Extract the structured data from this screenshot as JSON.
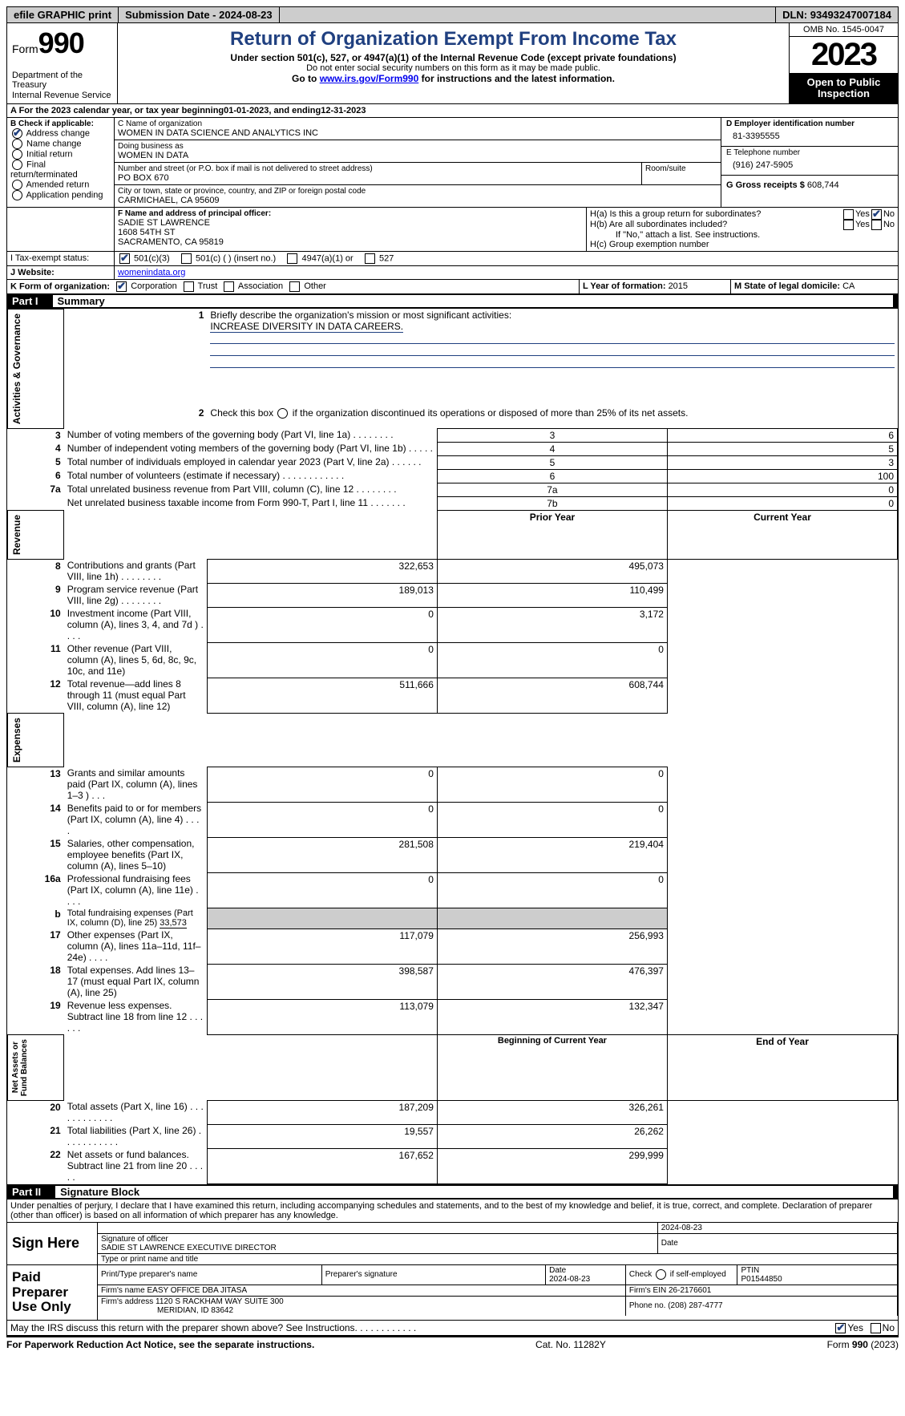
{
  "topbar": {
    "efile": "efile GRAPHIC print",
    "sub_label": "Submission Date - ",
    "sub_date": "2024-08-23",
    "dln_label": "DLN: ",
    "dln": "93493247007184"
  },
  "header": {
    "form_prefix": "Form",
    "form_no": "990",
    "dept": "Department of the Treasury\nInternal Revenue Service",
    "title": "Return of Organization Exempt From Income Tax",
    "sub1": "Under section 501(c), 527, or 4947(a)(1) of the Internal Revenue Code (except private foundations)",
    "sub2": "Do not enter social security numbers on this form as it may be made public.",
    "sub3_pre": "Go to ",
    "sub3_link": "www.irs.gov/Form990",
    "sub3_post": " for instructions and the latest information.",
    "omb": "OMB No. 1545-0047",
    "year": "2023",
    "inspect": "Open to Public Inspection",
    "title_color": "#204080"
  },
  "lineA": {
    "prefix": "A For the 2023 calendar year, or tax year beginning ",
    "begin": "01-01-2023",
    "mid": " , and ending ",
    "end": "12-31-2023"
  },
  "colB": {
    "label": "B Check if applicable:",
    "items": [
      "Address change",
      "Name change",
      "Initial return",
      "Final return/terminated",
      "Amended return",
      "Application pending"
    ],
    "checked_idx": 0
  },
  "colC": {
    "name_label": "C Name of organization",
    "name": "WOMEN IN DATA SCIENCE AND ANALYTICS INC",
    "dba_label": "Doing business as",
    "dba": "WOMEN IN DATA",
    "addr_label": "Number and street (or P.O. box if mail is not delivered to street address)",
    "room_label": "Room/suite",
    "addr": "PO BOX 670",
    "city_label": "City or town, state or province, country, and ZIP or foreign postal code",
    "city": "CARMICHAEL, CA  95609"
  },
  "colD": {
    "label": "D Employer identification number",
    "val": "81-3395555"
  },
  "colE": {
    "label": "E Telephone number",
    "val": "(916) 247-5905"
  },
  "colG": {
    "label": "G Gross receipts $ ",
    "val": "608,744"
  },
  "colF": {
    "label": "F  Name and address of principal officer:",
    "lines": [
      "SADIE ST LAWRENCE",
      "1608 54TH ST",
      "SACRAMENTO, CA  95819"
    ]
  },
  "colH": {
    "a": "H(a)  Is this a group return for subordinates?",
    "b": "H(b)  Are all subordinates included?",
    "b_note": "If \"No,\" attach a list. See instructions.",
    "c": "H(c)  Group exemption number",
    "yes": "Yes",
    "no": "No"
  },
  "rowI": {
    "label": "I   Tax-exempt status:",
    "opts": [
      "501(c)(3)",
      "501(c) (  ) (insert no.)",
      "4947(a)(1) or",
      "527"
    ],
    "checked_idx": 0
  },
  "rowJ": {
    "label": "J   Website:",
    "val": "womenindata.org"
  },
  "rowK": {
    "label": "K Form of organization:",
    "opts": [
      "Corporation",
      "Trust",
      "Association",
      "Other"
    ],
    "checked_idx": 0
  },
  "rowL": {
    "label": "L Year of formation: ",
    "val": "2015"
  },
  "rowM": {
    "label": "M State of legal domicile: ",
    "val": "CA"
  },
  "part1": {
    "num": "Part I",
    "title": "Summary"
  },
  "side_labels": {
    "gov": "Activities & Governance",
    "rev": "Revenue",
    "exp": "Expenses",
    "net": "Net Assets or\nFund Balances"
  },
  "s1": {
    "l1": "Briefly describe the organization's mission or most significant activities:",
    "l1v": "INCREASE DIVERSITY IN DATA CAREERS.",
    "l2": "Check this box       if the organization discontinued its operations or disposed of more than 25% of its net assets.",
    "rows_gov": [
      {
        "n": "3",
        "d": "Number of voting members of the governing body (Part VI, line 1a)   .    .    .    .    .    .    .    .",
        "b": "3",
        "v": "6"
      },
      {
        "n": "4",
        "d": "Number of independent voting members of the governing body (Part VI, line 1b)   .    .    .    .    .",
        "b": "4",
        "v": "5"
      },
      {
        "n": "5",
        "d": "Total number of individuals employed in calendar year 2023 (Part V, line 2a)   .    .    .    .    .    .",
        "b": "5",
        "v": "3"
      },
      {
        "n": "6",
        "d": "Total number of volunteers (estimate if necessary)   .    .    .    .    .    .    .    .    .    .    .    .",
        "b": "6",
        "v": "100"
      },
      {
        "n": "7a",
        "d": "Total unrelated business revenue from Part VIII, column (C), line 12   .    .    .    .    .    .    .    .",
        "b": "7a",
        "v": "0"
      },
      {
        "n": "",
        "d": "Net unrelated business taxable income from Form 990-T, Part I, line 11   .    .    .    .    .    .    .",
        "b": "7b",
        "v": "0"
      }
    ],
    "hdr_prior": "Prior Year",
    "hdr_curr": "Current Year",
    "rows_rev": [
      {
        "n": "8",
        "d": "Contributions and grants (Part VIII, line 1h)   .    .    .    .    .    .    .    .",
        "p": "322,653",
        "c": "495,073"
      },
      {
        "n": "9",
        "d": "Program service revenue (Part VIII, line 2g)   .    .    .    .    .    .    .    .",
        "p": "189,013",
        "c": "110,499"
      },
      {
        "n": "10",
        "d": "Investment income (Part VIII, column (A), lines 3, 4, and 7d )   .    .    .    .",
        "p": "0",
        "c": "3,172"
      },
      {
        "n": "11",
        "d": "Other revenue (Part VIII, column (A), lines 5, 6d, 8c, 9c, 10c, and 11e)",
        "p": "0",
        "c": "0"
      },
      {
        "n": "12",
        "d": "Total revenue—add lines 8 through 11 (must equal Part VIII, column (A), line 12)",
        "p": "511,666",
        "c": "608,744"
      }
    ],
    "rows_exp": [
      {
        "n": "13",
        "d": "Grants and similar amounts paid (Part IX, column (A), lines 1–3 )   .    .    .",
        "p": "0",
        "c": "0"
      },
      {
        "n": "14",
        "d": "Benefits paid to or for members (Part IX, column (A), line 4)   .    .    .    .",
        "p": "0",
        "c": "0"
      },
      {
        "n": "15",
        "d": "Salaries, other compensation, employee benefits (Part IX, column (A), lines 5–10)",
        "p": "281,508",
        "c": "219,404"
      },
      {
        "n": "16a",
        "d": "Professional fundraising fees (Part IX, column (A), line 11e)   .    .    .    .",
        "p": "0",
        "c": "0"
      }
    ],
    "l16b_pre": "Total fundraising expenses (Part IX, column (D), line 25) ",
    "l16b_val": "33,573",
    "rows_exp2": [
      {
        "n": "17",
        "d": "Other expenses (Part IX, column (A), lines 11a–11d, 11f–24e)   .    .    .    .",
        "p": "117,079",
        "c": "256,993"
      },
      {
        "n": "18",
        "d": "Total expenses. Add lines 13–17 (must equal Part IX, column (A), line 25)",
        "p": "398,587",
        "c": "476,397"
      },
      {
        "n": "19",
        "d": "Revenue less expenses. Subtract line 18 from line 12   .    .    .    .    .    .",
        "p": "113,079",
        "c": "132,347"
      }
    ],
    "hdr_beg": "Beginning of Current Year",
    "hdr_end": "End of Year",
    "rows_net": [
      {
        "n": "20",
        "d": "Total assets (Part X, line 16)   .    .    .    .    .    .    .    .    .    .    .    .",
        "p": "187,209",
        "c": "326,261"
      },
      {
        "n": "21",
        "d": "Total liabilities (Part X, line 26)   .    .    .    .    .    .    .    .    .    .    .",
        "p": "19,557",
        "c": "26,262"
      },
      {
        "n": "22",
        "d": "Net assets or fund balances. Subtract line 21 from line 20   .    .    .    .    .",
        "p": "167,652",
        "c": "299,999"
      }
    ]
  },
  "part2": {
    "num": "Part II",
    "title": "Signature Block"
  },
  "penalty": "Under penalties of perjury, I declare that I have examined this return, including accompanying schedules and statements, and to the best of my knowledge and belief, it is true, correct, and complete. Declaration of preparer (other than officer) is based on all information of which preparer has any knowledge.",
  "sign": {
    "here": "Sign Here",
    "date": "2024-08-23",
    "sig_label": "Signature of officer",
    "name": "SADIE ST LAWRENCE  EXECUTIVE DIRECTOR",
    "name_label": "Type or print name and title",
    "date_label": "Date"
  },
  "paid": {
    "label": "Paid Preparer Use Only",
    "h1": "Print/Type preparer's name",
    "h2": "Preparer's signature",
    "h3": "Date",
    "date": "2024-08-23",
    "h4_pre": "Check        if self-employed",
    "h5": "PTIN",
    "ptin": "P01544850",
    "firm_label": "Firm's name     ",
    "firm": "EASY OFFICE DBA JITASA",
    "ein_label": "Firm's EIN ",
    "ein": "26-2176601",
    "addr_label": "Firm's address ",
    "addr1": "1120 S RACKHAM WAY SUITE 300",
    "addr2": "MERIDIAN, ID  83642",
    "phone_label": "Phone no. ",
    "phone": "(208) 287-4777"
  },
  "discuss": {
    "q": "May the IRS discuss this return with the preparer shown above? See Instructions.    .    .    .    .    .    .    .    .    .    .    .",
    "yes": "Yes",
    "no": "No"
  },
  "footer": {
    "l": "For Paperwork Reduction Act Notice, see the separate instructions.",
    "m": "Cat. No. 11282Y",
    "r_pre": "Form ",
    "r_b": "990",
    "r_post": " (2023)"
  }
}
